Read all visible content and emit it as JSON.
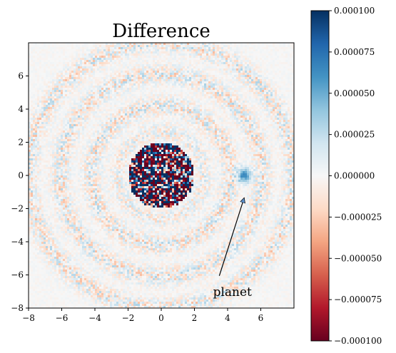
{
  "chart_data": [
    {
      "type": "heatmap",
      "title": "Difference",
      "xlabel": "",
      "ylabel": "",
      "xlim": [
        -8,
        8
      ],
      "ylim": [
        -8,
        8
      ],
      "xticks": [
        -8,
        -6,
        -4,
        -2,
        0,
        2,
        4,
        6
      ],
      "yticks": [
        -8,
        -6,
        -4,
        -2,
        0,
        2,
        4,
        6
      ],
      "colormap": "RdBu (diverging, red=negative, blue=positive)",
      "color_range": [
        -0.0001,
        0.0001
      ],
      "grid": false,
      "features": {
        "core_residual_center": [
          0,
          0
        ],
        "core_residual_radius": 2.0,
        "ring_radii": [
          4.2,
          6.1,
          8.0
        ],
        "planet_position": [
          5,
          0
        ],
        "planet_peak_value": 6e-05
      },
      "annotation": {
        "text": "planet",
        "text_position": [
          3,
          -7
        ],
        "arrow_to": [
          5,
          -1
        ]
      }
    },
    {
      "type": "colorbar",
      "range": [
        -0.0001,
        0.0001
      ],
      "ticks": [
        0.0001,
        7.5e-05,
        5e-05,
        2.5e-05,
        0.0,
        -2.5e-05,
        -5e-05,
        -7.5e-05,
        -0.0001
      ],
      "tick_labels": [
        "0.000100",
        "0.000075",
        "0.000050",
        "0.000025",
        "0.000000",
        "−0.000025",
        "−0.000050",
        "−0.000075",
        "−0.000100"
      ]
    }
  ]
}
